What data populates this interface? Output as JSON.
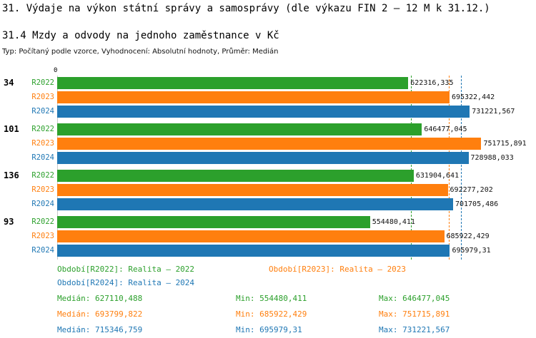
{
  "title": "31. Výdaje na výkon státní správy a samosprávy (dle výkazu FIN 2 – 12 M k 31.12.)",
  "subtitle": "31.4 Mzdy a odvody na jednoho zaměstnance v Kč",
  "meta": "Typ: Počítaný podle vzorce, Vyhodnocení: Absolutní hodnoty, Průměr: Medián",
  "colors": {
    "r2022": "#2ca02c",
    "r2023": "#ff7f0e",
    "r2024": "#1f77b4"
  },
  "chart_data": {
    "type": "bar",
    "orientation": "horizontal",
    "axis_zero_label": "0",
    "xlim": [
      0,
      760000
    ],
    "grid": false,
    "groups": [
      "34",
      "101",
      "136",
      "93"
    ],
    "series": [
      {
        "name": "R2022",
        "color": "#2ca02c",
        "values": [
          622316.335,
          646477.045,
          631904.641,
          554480.411
        ],
        "labels": [
          "622316,335",
          "646477,045",
          "631904,641",
          "554480,411"
        ]
      },
      {
        "name": "R2023",
        "color": "#ff7f0e",
        "values": [
          695322.442,
          751715.891,
          692277.202,
          685922.429
        ],
        "labels": [
          "695322,442",
          "751715,891",
          "692277,202",
          "685922,429"
        ]
      },
      {
        "name": "R2024",
        "color": "#1f77b4",
        "values": [
          731221.567,
          728988.033,
          701705.486,
          695979.31
        ],
        "labels": [
          "731221,567",
          "728988,033",
          "701705,486",
          "695979,31"
        ]
      }
    ],
    "medians": [
      {
        "series": "R2022",
        "value": 627110.488,
        "color": "#2ca02c"
      },
      {
        "series": "R2023",
        "value": 693799.822,
        "color": "#ff7f0e"
      },
      {
        "series": "R2024",
        "value": 715346.759,
        "color": "#1f77b4"
      }
    ]
  },
  "legend": [
    {
      "label": "Období[R2022]: Realita – 2022",
      "color": "#2ca02c"
    },
    {
      "label": "Období[R2023]: Realita – 2023",
      "color": "#ff7f0e"
    },
    {
      "label": "Období[R2024]: Realita – 2024",
      "color": "#1f77b4"
    }
  ],
  "stats": [
    {
      "median": "Medián: 627110,488",
      "min": "Min: 554480,411",
      "max": "Max: 646477,045",
      "color": "#2ca02c"
    },
    {
      "median": "Medián: 693799,822",
      "min": "Min: 685922,429",
      "max": "Max: 751715,891",
      "color": "#ff7f0e"
    },
    {
      "median": "Medián: 715346,759",
      "min": "Min: 695979,31",
      "max": "Max: 731221,567",
      "color": "#1f77b4"
    }
  ]
}
